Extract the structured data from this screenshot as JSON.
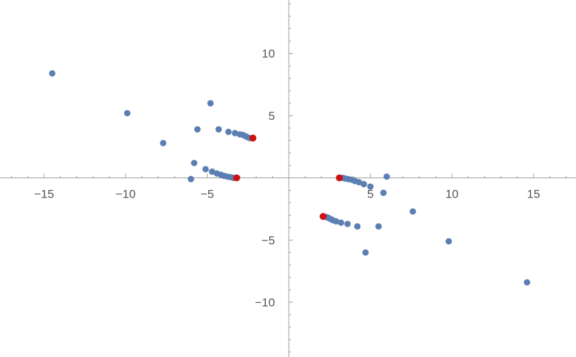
{
  "chart_data": {
    "type": "scatter",
    "title": "",
    "xlabel": "",
    "ylabel": "",
    "xlim": [
      -17.7,
      17.6
    ],
    "ylim": [
      -14.4,
      14.3
    ],
    "grid": false,
    "x_ticks": [
      -15,
      -10,
      -5,
      5,
      10,
      15
    ],
    "y_ticks": [
      -10,
      -5,
      5,
      10
    ],
    "x_tick_labels": [
      "−15",
      "−10",
      "−5",
      "5",
      "10",
      "15"
    ],
    "y_tick_labels": [
      "−10",
      "−5",
      "5",
      "10"
    ],
    "series": [
      {
        "color": "#5b7fb3",
        "points": [
          {
            "x": -14.5,
            "y": 8.4
          },
          {
            "x": -9.9,
            "y": 5.2
          },
          {
            "x": -7.7,
            "y": 2.8
          },
          {
            "x": -4.8,
            "y": 6.0
          },
          {
            "x": -5.6,
            "y": 3.9
          },
          {
            "x": -4.3,
            "y": 3.9
          },
          {
            "x": -3.7,
            "y": 3.7
          },
          {
            "x": -3.3,
            "y": 3.6
          },
          {
            "x": -3.0,
            "y": 3.5
          },
          {
            "x": -2.8,
            "y": 3.45
          },
          {
            "x": -2.65,
            "y": 3.35
          },
          {
            "x": -2.5,
            "y": 3.25
          },
          {
            "x": -2.4,
            "y": 3.2
          },
          {
            "x": -5.8,
            "y": 1.2
          },
          {
            "x": -6.0,
            "y": -0.1
          },
          {
            "x": -5.1,
            "y": 0.7
          },
          {
            "x": -4.7,
            "y": 0.5
          },
          {
            "x": -4.4,
            "y": 0.35
          },
          {
            "x": -4.15,
            "y": 0.25
          },
          {
            "x": -3.95,
            "y": 0.15
          },
          {
            "x": -3.75,
            "y": 0.1
          },
          {
            "x": -3.55,
            "y": 0.05
          },
          {
            "x": -3.4,
            "y": 0.0
          },
          {
            "x": 14.6,
            "y": -8.4
          },
          {
            "x": 9.8,
            "y": -5.1
          },
          {
            "x": 7.6,
            "y": -2.7
          },
          {
            "x": 4.7,
            "y": -6.0
          },
          {
            "x": 5.5,
            "y": -3.9
          },
          {
            "x": 4.2,
            "y": -3.9
          },
          {
            "x": 3.6,
            "y": -3.7
          },
          {
            "x": 3.2,
            "y": -3.6
          },
          {
            "x": 2.9,
            "y": -3.5
          },
          {
            "x": 2.7,
            "y": -3.4
          },
          {
            "x": 2.55,
            "y": -3.3
          },
          {
            "x": 2.4,
            "y": -3.2
          },
          {
            "x": 2.3,
            "y": -3.15
          },
          {
            "x": 6.0,
            "y": 0.1
          },
          {
            "x": 5.8,
            "y": -1.2
          },
          {
            "x": 5.0,
            "y": -0.7
          },
          {
            "x": 4.6,
            "y": -0.5
          },
          {
            "x": 4.3,
            "y": -0.35
          },
          {
            "x": 4.05,
            "y": -0.25
          },
          {
            "x": 3.85,
            "y": -0.15
          },
          {
            "x": 3.65,
            "y": -0.1
          },
          {
            "x": 3.45,
            "y": -0.05
          },
          {
            "x": 3.3,
            "y": 0.0
          }
        ]
      },
      {
        "color": "#cc1111",
        "points": [
          {
            "x": -2.2,
            "y": 3.2
          },
          {
            "x": -3.2,
            "y": 0.0
          },
          {
            "x": 3.1,
            "y": 0.0
          },
          {
            "x": 2.1,
            "y": -3.1
          }
        ]
      }
    ]
  }
}
